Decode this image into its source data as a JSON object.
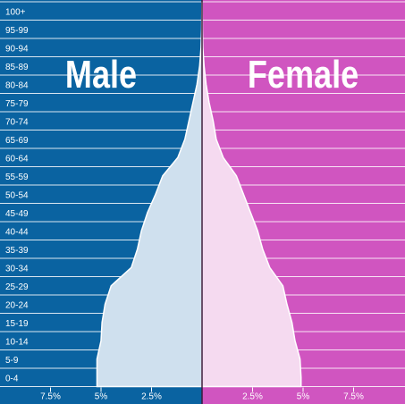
{
  "chart_data": {
    "type": "area",
    "chart_kind": "population pyramid",
    "age_groups": [
      "0-4",
      "5-9",
      "10-14",
      "15-19",
      "20-24",
      "25-29",
      "30-34",
      "35-39",
      "40-44",
      "45-49",
      "50-54",
      "55-59",
      "60-64",
      "65-69",
      "70-74",
      "75-79",
      "80-84",
      "85-89",
      "90-94",
      "95-99",
      "100+"
    ],
    "series": [
      {
        "name": "Male",
        "values": [
          5.2,
          5.2,
          5.0,
          4.95,
          4.8,
          4.5,
          3.5,
          3.2,
          3.0,
          2.7,
          2.3,
          1.95,
          1.2,
          0.85,
          0.65,
          0.45,
          0.25,
          0.12,
          0.05,
          0.02,
          0.01
        ]
      },
      {
        "name": "Female",
        "values": [
          4.9,
          4.85,
          4.6,
          4.45,
          4.2,
          4.0,
          3.35,
          3.0,
          2.75,
          2.4,
          2.05,
          1.7,
          1.05,
          0.7,
          0.55,
          0.35,
          0.2,
          0.1,
          0.04,
          0.02,
          0.01
        ]
      }
    ],
    "xticks": {
      "male": [
        "7.5%",
        "5%",
        "2.5%"
      ],
      "female": [
        "2.5%",
        "5%",
        "7.5%"
      ]
    },
    "xlim": [
      0,
      10
    ],
    "grid": true,
    "colors": {
      "male_bg": "#0a63a1",
      "female_bg": "#d055c0",
      "male_fill": "#cfe0ee",
      "female_fill": "#f5daf0",
      "grid": "#ffffff",
      "center_line": "#3a1a3a"
    }
  }
}
